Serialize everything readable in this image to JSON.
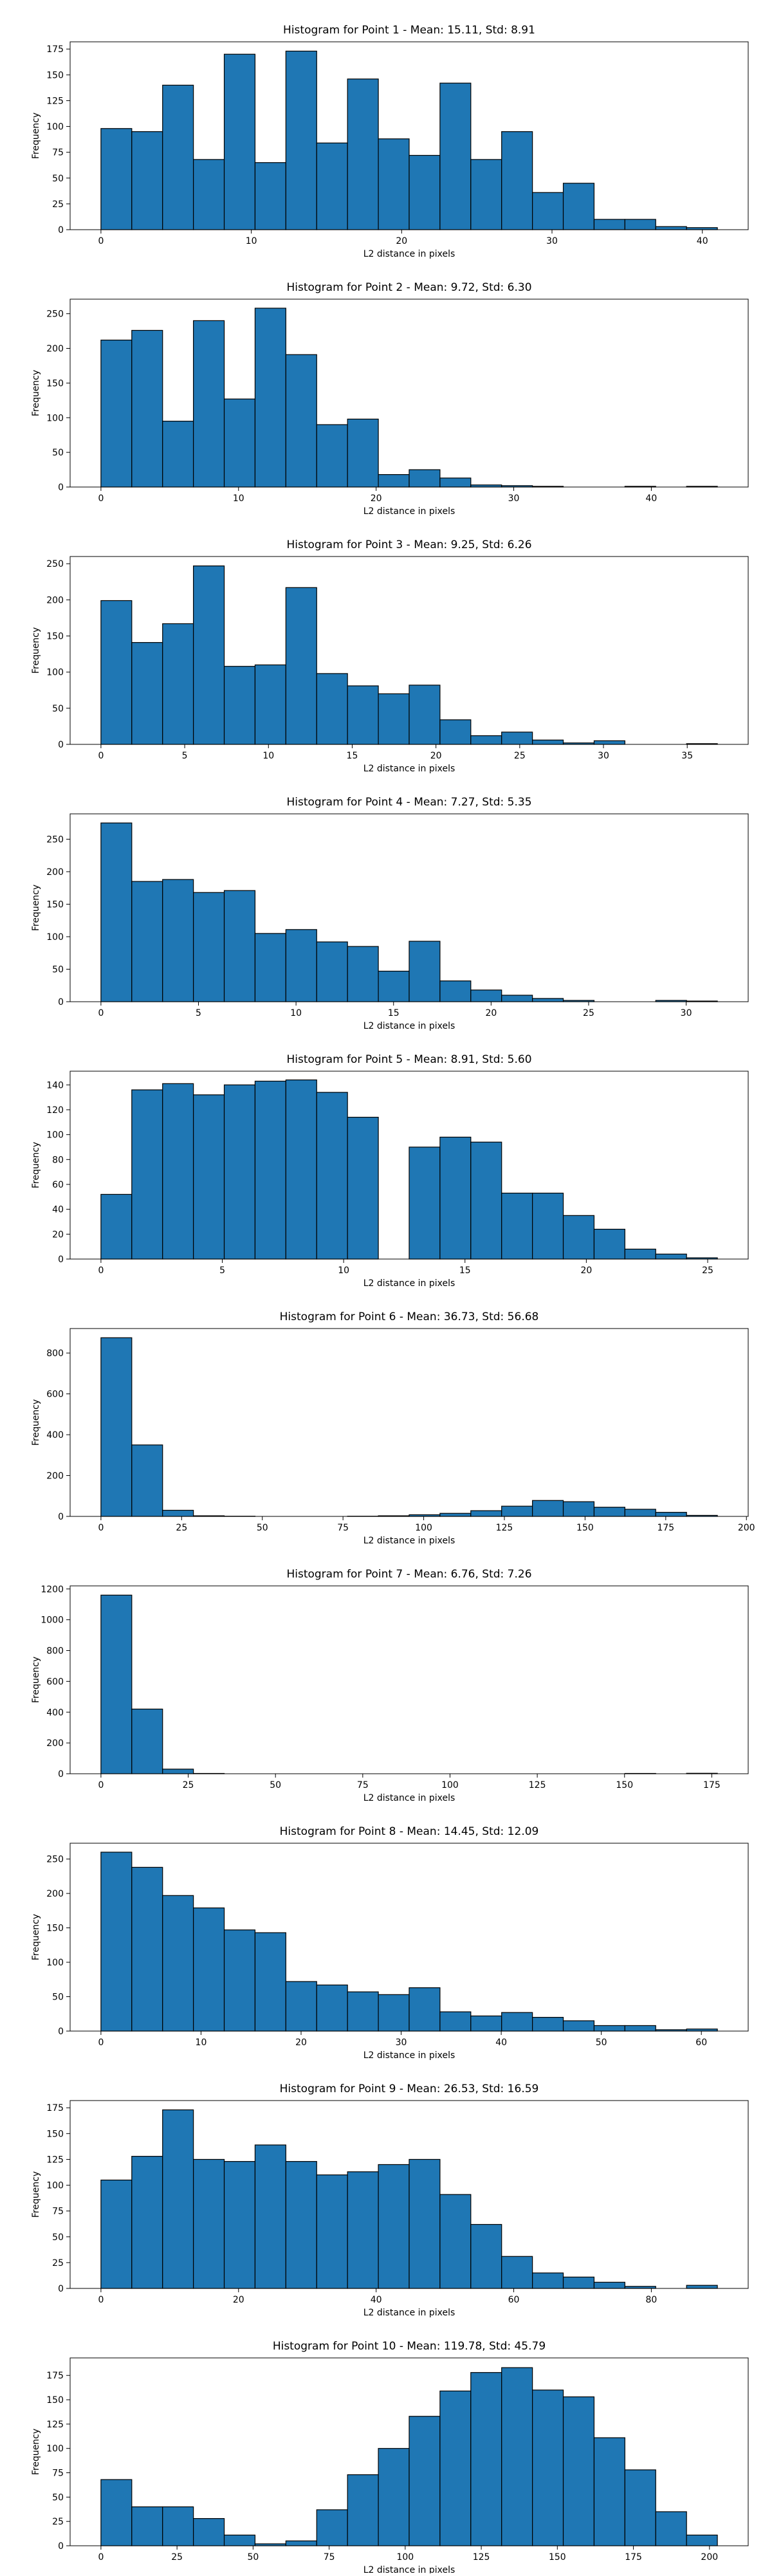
{
  "chart_data": [
    {
      "type": "histogram",
      "title": "Histogram for Point 1 - Mean: 15.11, Std: 8.91",
      "xlabel": "L2 distance in pixels",
      "ylabel": "Frequency",
      "color": "#1f77b4",
      "bins": [
        0,
        2.05,
        4.1,
        6.15,
        8.2,
        10.25,
        12.3,
        14.35,
        16.4,
        18.45,
        20.5,
        22.55,
        24.6,
        26.65,
        28.7,
        30.75,
        32.8,
        34.85,
        36.9,
        38.95,
        41
      ],
      "counts": [
        98,
        95,
        140,
        68,
        170,
        65,
        173,
        84,
        146,
        88,
        72,
        142,
        68,
        95,
        36,
        45,
        10,
        10,
        3,
        2
      ],
      "xlim": [
        -2.05,
        43.05
      ],
      "ylim": [
        0,
        182
      ],
      "xticks": [
        0,
        10,
        20,
        30,
        40
      ],
      "yticks": [
        0,
        25,
        50,
        75,
        100,
        125,
        150,
        175
      ]
    },
    {
      "type": "histogram",
      "title": "Histogram for Point 2 - Mean: 9.72, Std: 6.30",
      "xlabel": "L2 distance in pixels",
      "ylabel": "Frequency",
      "color": "#1f77b4",
      "bins": [
        0,
        2.24,
        4.48,
        6.72,
        8.96,
        11.2,
        13.44,
        15.68,
        17.92,
        20.16,
        22.4,
        24.64,
        26.88,
        29.12,
        31.36,
        33.6,
        35.84,
        38.08,
        40.32,
        42.56,
        44.8
      ],
      "counts": [
        212,
        226,
        95,
        240,
        127,
        258,
        191,
        90,
        98,
        18,
        25,
        13,
        3,
        2,
        1,
        0,
        0,
        1,
        0,
        1
      ],
      "xlim": [
        -2.24,
        47.04
      ],
      "ylim": [
        0,
        271
      ],
      "xticks": [
        0,
        10,
        20,
        30,
        40
      ],
      "yticks": [
        0,
        50,
        100,
        150,
        200,
        250
      ]
    },
    {
      "type": "histogram",
      "title": "Histogram for Point 3 - Mean: 9.25, Std: 6.26",
      "xlabel": "L2 distance in pixels",
      "ylabel": "Frequency",
      "color": "#1f77b4",
      "bins": [
        0,
        1.84,
        3.68,
        5.52,
        7.36,
        9.2,
        11.04,
        12.88,
        14.72,
        16.56,
        18.4,
        20.24,
        22.08,
        23.92,
        25.76,
        27.6,
        29.44,
        31.28,
        33.12,
        34.96,
        36.8
      ],
      "counts": [
        199,
        141,
        167,
        247,
        108,
        110,
        217,
        98,
        81,
        70,
        82,
        34,
        12,
        17,
        6,
        2,
        5,
        0,
        0,
        1
      ],
      "xlim": [
        -1.84,
        38.64
      ],
      "ylim": [
        0,
        260
      ],
      "xticks": [
        0,
        5,
        10,
        15,
        20,
        25,
        30,
        35
      ],
      "yticks": [
        0,
        50,
        100,
        150,
        200,
        250
      ]
    },
    {
      "type": "histogram",
      "title": "Histogram for Point 4 - Mean: 7.27, Std: 5.35",
      "xlabel": "L2 distance in pixels",
      "ylabel": "Frequency",
      "color": "#1f77b4",
      "bins": [
        0,
        1.58,
        3.16,
        4.74,
        6.32,
        7.9,
        9.48,
        11.06,
        12.64,
        14.22,
        15.8,
        17.38,
        18.96,
        20.54,
        22.12,
        23.7,
        25.28,
        26.86,
        28.44,
        30.02,
        31.6
      ],
      "counts": [
        275,
        185,
        188,
        168,
        171,
        105,
        111,
        92,
        85,
        47,
        93,
        32,
        18,
        10,
        5,
        2,
        0,
        0,
        2,
        1
      ],
      "xlim": [
        -1.58,
        33.18
      ],
      "ylim": [
        0,
        289
      ],
      "xticks": [
        0,
        5,
        10,
        15,
        20,
        25,
        30
      ],
      "yticks": [
        0,
        50,
        100,
        150,
        200,
        250
      ]
    },
    {
      "type": "histogram",
      "title": "Histogram for Point 5 - Mean: 8.91, Std: 5.60",
      "xlabel": "L2 distance in pixels",
      "ylabel": "Frequency",
      "color": "#1f77b4",
      "bins": [
        0,
        1.27,
        2.54,
        3.81,
        5.08,
        6.35,
        7.62,
        8.89,
        10.16,
        11.43,
        12.7,
        13.97,
        15.24,
        16.51,
        17.78,
        19.05,
        20.32,
        21.59,
        22.86,
        24.13,
        25.4
      ],
      "counts": [
        52,
        136,
        141,
        132,
        140,
        143,
        144,
        134,
        114,
        0,
        90,
        98,
        94,
        53,
        53,
        35,
        24,
        8,
        4,
        1
      ],
      "xlim": [
        -1.27,
        26.67
      ],
      "ylim": [
        0,
        151
      ],
      "xticks": [
        0,
        5,
        10,
        15,
        20,
        25
      ],
      "yticks": [
        0,
        20,
        40,
        60,
        80,
        100,
        120,
        140
      ]
    },
    {
      "type": "histogram",
      "title": "Histogram for Point 6 - Mean: 36.73, Std: 56.68",
      "xlabel": "L2 distance in pixels",
      "ylabel": "Frequency",
      "color": "#1f77b4",
      "bins": [
        0,
        9.55,
        19.1,
        28.65,
        38.2,
        47.75,
        57.3,
        66.85,
        76.4,
        85.95,
        95.5,
        105.05,
        114.6,
        124.15,
        133.7,
        143.25,
        152.8,
        162.35,
        171.9,
        181.45,
        191
      ],
      "counts": [
        875,
        350,
        30,
        3,
        1,
        0,
        0,
        0,
        1,
        3,
        8,
        15,
        28,
        50,
        78,
        72,
        45,
        35,
        20,
        5
      ],
      "xlim": [
        -9.55,
        200.55
      ],
      "ylim": [
        0,
        920
      ],
      "xticks": [
        0,
        25,
        50,
        75,
        100,
        125,
        150,
        175,
        200
      ],
      "yticks": [
        0,
        200,
        400,
        600,
        800
      ]
    },
    {
      "type": "histogram",
      "title": "Histogram for Point 7 - Mean: 6.76, Std: 7.26",
      "xlabel": "L2 distance in pixels",
      "ylabel": "Frequency",
      "color": "#1f77b4",
      "bins": [
        0,
        8.83,
        17.66,
        26.49,
        35.32,
        44.15,
        52.98,
        61.81,
        70.64,
        79.47,
        88.3,
        97.13,
        105.96,
        114.79,
        123.62,
        132.45,
        141.28,
        150.11,
        158.94,
        167.77,
        176.6
      ],
      "counts": [
        1160,
        420,
        30,
        2,
        0,
        0,
        0,
        0,
        0,
        0,
        0,
        0,
        0,
        0,
        0,
        0,
        0,
        2,
        0,
        3
      ],
      "xlim": [
        -8.83,
        185.43
      ],
      "ylim": [
        0,
        1220
      ],
      "xticks": [
        0,
        25,
        50,
        75,
        100,
        125,
        150,
        175
      ],
      "yticks": [
        0,
        200,
        400,
        600,
        800,
        1000,
        1200
      ]
    },
    {
      "type": "histogram",
      "title": "Histogram for Point 8 - Mean: 14.45, Std: 12.09",
      "xlabel": "L2 distance in pixels",
      "ylabel": "Frequency",
      "color": "#1f77b4",
      "bins": [
        0,
        3.08,
        6.16,
        9.24,
        12.32,
        15.4,
        18.48,
        21.56,
        24.64,
        27.72,
        30.8,
        33.88,
        36.96,
        40.04,
        43.12,
        46.2,
        49.28,
        52.36,
        55.44,
        58.52,
        61.6
      ],
      "counts": [
        260,
        238,
        197,
        179,
        147,
        143,
        72,
        67,
        57,
        53,
        63,
        28,
        22,
        27,
        20,
        15,
        8,
        8,
        2,
        3
      ],
      "xlim": [
        -3.08,
        64.68
      ],
      "ylim": [
        0,
        273
      ],
      "xticks": [
        0,
        10,
        20,
        30,
        40,
        50,
        60
      ],
      "yticks": [
        0,
        50,
        100,
        150,
        200,
        250
      ]
    },
    {
      "type": "histogram",
      "title": "Histogram for Point 9 - Mean: 26.53, Std: 16.59",
      "xlabel": "L2 distance in pixels",
      "ylabel": "Frequency",
      "color": "#1f77b4",
      "bins": [
        0,
        4.48,
        8.96,
        13.44,
        17.92,
        22.4,
        26.88,
        31.36,
        35.84,
        40.32,
        44.8,
        49.28,
        53.76,
        58.24,
        62.72,
        67.2,
        71.68,
        76.16,
        80.64,
        85.12,
        89.6
      ],
      "counts": [
        105,
        128,
        173,
        125,
        123,
        139,
        123,
        110,
        113,
        120,
        125,
        91,
        62,
        31,
        15,
        11,
        6,
        2,
        0,
        3
      ],
      "xlim": [
        -4.48,
        94.08
      ],
      "ylim": [
        0,
        182
      ],
      "xticks": [
        0,
        20,
        40,
        60,
        80
      ],
      "yticks": [
        0,
        25,
        50,
        75,
        100,
        125,
        150,
        175
      ]
    },
    {
      "type": "histogram",
      "title": "Histogram for Point 10 - Mean: 119.78, Std: 45.79",
      "xlabel": "L2 distance in pixels",
      "ylabel": "Frequency",
      "color": "#1f77b4",
      "bins": [
        0,
        10.13,
        20.26,
        30.39,
        40.52,
        50.65,
        60.78,
        70.91,
        81.04,
        91.17,
        101.3,
        111.43,
        121.56,
        131.69,
        141.82,
        151.95,
        162.08,
        172.21,
        182.34,
        192.47,
        202.6
      ],
      "counts": [
        68,
        40,
        40,
        28,
        11,
        2,
        5,
        37,
        73,
        100,
        133,
        159,
        178,
        183,
        160,
        153,
        111,
        78,
        35,
        11
      ],
      "xlim": [
        -10.13,
        212.73
      ],
      "ylim": [
        0,
        193
      ],
      "xticks": [
        0,
        25,
        50,
        75,
        100,
        125,
        150,
        175,
        200
      ],
      "yticks": [
        0,
        25,
        50,
        75,
        100,
        125,
        150,
        175
      ]
    }
  ]
}
